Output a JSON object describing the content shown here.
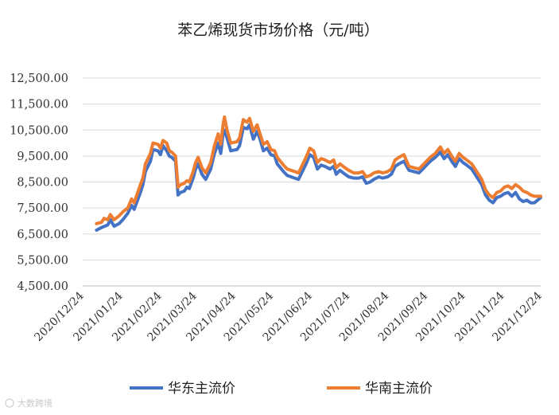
{
  "chart_data": {
    "type": "line",
    "title": "苯乙烯现货市场价格（元/吨）",
    "ylim": [
      4500,
      12500
    ],
    "yticks": [
      "4,500.00",
      "5,500.00",
      "6,500.00",
      "7,500.00",
      "8,500.00",
      "9,500.00",
      "10,500.00",
      "11,500.00",
      "12,500.00"
    ],
    "ytick_values": [
      4500,
      5500,
      6500,
      7500,
      8500,
      9500,
      10500,
      11500,
      12500
    ],
    "xlim": [
      "2020-12-24",
      "2021-12-24"
    ],
    "xticks": [
      "2020/12/24",
      "2021/01/24",
      "2021/02/24",
      "2021/03/24",
      "2021/04/24",
      "2021/05/24",
      "2021/06/24",
      "2021/07/24",
      "2021/08/24",
      "2021/09/24",
      "2021/10/24",
      "2021/11/24",
      "2021/12/24"
    ],
    "xtick_dates": [
      "2020-12-24",
      "2021-01-24",
      "2021-02-24",
      "2021-03-24",
      "2021-04-24",
      "2021-05-24",
      "2021-06-24",
      "2021-07-24",
      "2021-08-24",
      "2021-09-24",
      "2021-10-24",
      "2021-11-24",
      "2021-12-24"
    ],
    "grid": "horizontal",
    "legend_position": "bottom",
    "series": [
      {
        "name": "华东主流价",
        "color": "#4472c4",
        "points": [
          [
            "2021-01-04",
            6650
          ],
          [
            "2021-01-08",
            6750
          ],
          [
            "2021-01-13",
            6850
          ],
          [
            "2021-01-15",
            7050
          ],
          [
            "2021-01-18",
            6800
          ],
          [
            "2021-01-22",
            6900
          ],
          [
            "2021-01-25",
            7050
          ],
          [
            "2021-01-29",
            7300
          ],
          [
            "2021-02-01",
            7600
          ],
          [
            "2021-02-03",
            7450
          ],
          [
            "2021-02-08",
            8100
          ],
          [
            "2021-02-10",
            8400
          ],
          [
            "2021-02-12",
            8900
          ],
          [
            "2021-02-16",
            9300
          ],
          [
            "2021-02-18",
            9750
          ],
          [
            "2021-02-22",
            9700
          ],
          [
            "2021-02-24",
            9550
          ],
          [
            "2021-02-26",
            9900
          ],
          [
            "2021-03-01",
            9700
          ],
          [
            "2021-03-03",
            9500
          ],
          [
            "2021-03-05",
            9450
          ],
          [
            "2021-03-08",
            9300
          ],
          [
            "2021-03-10",
            8000
          ],
          [
            "2021-03-12",
            8100
          ],
          [
            "2021-03-15",
            8150
          ],
          [
            "2021-03-17",
            8300
          ],
          [
            "2021-03-19",
            8250
          ],
          [
            "2021-03-22",
            8650
          ],
          [
            "2021-03-24",
            9000
          ],
          [
            "2021-03-26",
            9200
          ],
          [
            "2021-03-29",
            8800
          ],
          [
            "2021-04-01",
            8600
          ],
          [
            "2021-04-05",
            9000
          ],
          [
            "2021-04-08",
            9600
          ],
          [
            "2021-04-11",
            10000
          ],
          [
            "2021-04-13",
            9600
          ],
          [
            "2021-04-15",
            10400
          ],
          [
            "2021-04-16",
            10500
          ],
          [
            "2021-04-18",
            10200
          ],
          [
            "2021-04-21",
            9700
          ],
          [
            "2021-04-26",
            9750
          ],
          [
            "2021-04-28",
            9900
          ],
          [
            "2021-05-01",
            10600
          ],
          [
            "2021-05-04",
            10550
          ],
          [
            "2021-05-06",
            10700
          ],
          [
            "2021-05-09",
            10150
          ],
          [
            "2021-05-12",
            10450
          ],
          [
            "2021-05-14",
            10200
          ],
          [
            "2021-05-17",
            9700
          ],
          [
            "2021-05-20",
            9800
          ],
          [
            "2021-05-23",
            9550
          ],
          [
            "2021-05-26",
            9500
          ],
          [
            "2021-05-28",
            9200
          ],
          [
            "2021-06-02",
            8900
          ],
          [
            "2021-06-05",
            8750
          ],
          [
            "2021-06-08",
            8700
          ],
          [
            "2021-06-11",
            8650
          ],
          [
            "2021-06-14",
            8600
          ],
          [
            "2021-06-17",
            8900
          ],
          [
            "2021-06-20",
            9200
          ],
          [
            "2021-06-23",
            9550
          ],
          [
            "2021-06-26",
            9450
          ],
          [
            "2021-06-29",
            9000
          ],
          [
            "2021-07-02",
            9150
          ],
          [
            "2021-07-05",
            9100
          ],
          [
            "2021-07-09",
            9000
          ],
          [
            "2021-07-12",
            9100
          ],
          [
            "2021-07-14",
            8800
          ],
          [
            "2021-07-17",
            8950
          ],
          [
            "2021-07-21",
            8800
          ],
          [
            "2021-07-24",
            8700
          ],
          [
            "2021-07-28",
            8650
          ],
          [
            "2021-08-01",
            8650
          ],
          [
            "2021-08-04",
            8700
          ],
          [
            "2021-08-07",
            8450
          ],
          [
            "2021-08-10",
            8500
          ],
          [
            "2021-08-13",
            8600
          ],
          [
            "2021-08-17",
            8700
          ],
          [
            "2021-08-20",
            8650
          ],
          [
            "2021-08-24",
            8700
          ],
          [
            "2021-08-27",
            8800
          ],
          [
            "2021-08-30",
            9100
          ],
          [
            "2021-09-02",
            9200
          ],
          [
            "2021-09-06",
            9300
          ],
          [
            "2021-09-10",
            8950
          ],
          [
            "2021-09-14",
            8900
          ],
          [
            "2021-09-18",
            8850
          ],
          [
            "2021-09-22",
            9050
          ],
          [
            "2021-09-27",
            9300
          ],
          [
            "2021-10-01",
            9450
          ],
          [
            "2021-10-05",
            9650
          ],
          [
            "2021-10-08",
            9400
          ],
          [
            "2021-10-11",
            9550
          ],
          [
            "2021-10-14",
            9300
          ],
          [
            "2021-10-17",
            9100
          ],
          [
            "2021-10-20",
            9400
          ],
          [
            "2021-10-23",
            9250
          ],
          [
            "2021-10-26",
            9150
          ],
          [
            "2021-10-30",
            9000
          ],
          [
            "2021-11-03",
            8700
          ],
          [
            "2021-11-07",
            8400
          ],
          [
            "2021-11-10",
            8000
          ],
          [
            "2021-11-13",
            7800
          ],
          [
            "2021-11-16",
            7700
          ],
          [
            "2021-11-19",
            7900
          ],
          [
            "2021-11-22",
            7950
          ],
          [
            "2021-11-25",
            8050
          ],
          [
            "2021-11-28",
            8100
          ],
          [
            "2021-12-01",
            7950
          ],
          [
            "2021-12-04",
            8100
          ],
          [
            "2021-12-07",
            7850
          ],
          [
            "2021-12-10",
            7750
          ],
          [
            "2021-12-13",
            7800
          ],
          [
            "2021-12-16",
            7700
          ],
          [
            "2021-12-19",
            7700
          ],
          [
            "2021-12-24",
            7900
          ]
        ]
      },
      {
        "name": "华南主流价",
        "color": "#ed7d31",
        "points": [
          [
            "2021-01-04",
            6900
          ],
          [
            "2021-01-08",
            6950
          ],
          [
            "2021-01-10",
            7100
          ],
          [
            "2021-01-13",
            7050
          ],
          [
            "2021-01-15",
            7250
          ],
          [
            "2021-01-18",
            7050
          ],
          [
            "2021-01-22",
            7200
          ],
          [
            "2021-01-25",
            7350
          ],
          [
            "2021-01-29",
            7500
          ],
          [
            "2021-02-01",
            7850
          ],
          [
            "2021-02-03",
            7700
          ],
          [
            "2021-02-08",
            8400
          ],
          [
            "2021-02-10",
            8650
          ],
          [
            "2021-02-12",
            9200
          ],
          [
            "2021-02-16",
            9600
          ],
          [
            "2021-02-18",
            10000
          ],
          [
            "2021-02-22",
            9950
          ],
          [
            "2021-02-24",
            9800
          ],
          [
            "2021-02-26",
            10100
          ],
          [
            "2021-03-01",
            10000
          ],
          [
            "2021-03-03",
            9700
          ],
          [
            "2021-03-05",
            9650
          ],
          [
            "2021-03-08",
            9500
          ],
          [
            "2021-03-10",
            8300
          ],
          [
            "2021-03-12",
            8400
          ],
          [
            "2021-03-15",
            8450
          ],
          [
            "2021-03-17",
            8550
          ],
          [
            "2021-03-19",
            8500
          ],
          [
            "2021-03-22",
            8900
          ],
          [
            "2021-03-24",
            9250
          ],
          [
            "2021-03-26",
            9450
          ],
          [
            "2021-03-29",
            9050
          ],
          [
            "2021-04-01",
            8850
          ],
          [
            "2021-04-05",
            9250
          ],
          [
            "2021-04-08",
            9900
          ],
          [
            "2021-04-11",
            10350
          ],
          [
            "2021-04-13",
            9950
          ],
          [
            "2021-04-15",
            10750
          ],
          [
            "2021-04-16",
            11000
          ],
          [
            "2021-04-18",
            10500
          ],
          [
            "2021-04-21",
            10000
          ],
          [
            "2021-04-26",
            10050
          ],
          [
            "2021-04-28",
            10200
          ],
          [
            "2021-05-01",
            10900
          ],
          [
            "2021-05-04",
            10800
          ],
          [
            "2021-05-06",
            10950
          ],
          [
            "2021-05-09",
            10450
          ],
          [
            "2021-05-12",
            10700
          ],
          [
            "2021-05-14",
            10400
          ],
          [
            "2021-05-17",
            9950
          ],
          [
            "2021-05-20",
            10050
          ],
          [
            "2021-05-23",
            9750
          ],
          [
            "2021-05-26",
            9700
          ],
          [
            "2021-05-28",
            9450
          ],
          [
            "2021-06-02",
            9150
          ],
          [
            "2021-06-05",
            9000
          ],
          [
            "2021-06-08",
            8950
          ],
          [
            "2021-06-11",
            8900
          ],
          [
            "2021-06-14",
            8850
          ],
          [
            "2021-06-17",
            9150
          ],
          [
            "2021-06-20",
            9450
          ],
          [
            "2021-06-23",
            9800
          ],
          [
            "2021-06-26",
            9700
          ],
          [
            "2021-06-29",
            9250
          ],
          [
            "2021-07-02",
            9400
          ],
          [
            "2021-07-05",
            9350
          ],
          [
            "2021-07-09",
            9250
          ],
          [
            "2021-07-12",
            9350
          ],
          [
            "2021-07-14",
            9050
          ],
          [
            "2021-07-17",
            9200
          ],
          [
            "2021-07-21",
            9050
          ],
          [
            "2021-07-24",
            8950
          ],
          [
            "2021-07-28",
            8850
          ],
          [
            "2021-08-01",
            8850
          ],
          [
            "2021-08-04",
            8900
          ],
          [
            "2021-08-07",
            8700
          ],
          [
            "2021-08-10",
            8750
          ],
          [
            "2021-08-13",
            8850
          ],
          [
            "2021-08-17",
            8900
          ],
          [
            "2021-08-20",
            8850
          ],
          [
            "2021-08-24",
            8900
          ],
          [
            "2021-08-27",
            9000
          ],
          [
            "2021-08-30",
            9350
          ],
          [
            "2021-09-02",
            9450
          ],
          [
            "2021-09-06",
            9550
          ],
          [
            "2021-09-10",
            9100
          ],
          [
            "2021-09-14",
            9050
          ],
          [
            "2021-09-18",
            9000
          ],
          [
            "2021-09-22",
            9200
          ],
          [
            "2021-09-27",
            9450
          ],
          [
            "2021-10-01",
            9600
          ],
          [
            "2021-10-05",
            9850
          ],
          [
            "2021-10-08",
            9600
          ],
          [
            "2021-10-11",
            9750
          ],
          [
            "2021-10-14",
            9500
          ],
          [
            "2021-10-17",
            9300
          ],
          [
            "2021-10-20",
            9600
          ],
          [
            "2021-10-23",
            9450
          ],
          [
            "2021-10-26",
            9350
          ],
          [
            "2021-10-30",
            9200
          ],
          [
            "2021-11-03",
            8900
          ],
          [
            "2021-11-07",
            8600
          ],
          [
            "2021-11-10",
            8200
          ],
          [
            "2021-11-13",
            8000
          ],
          [
            "2021-11-16",
            7900
          ],
          [
            "2021-11-19",
            8100
          ],
          [
            "2021-11-22",
            8150
          ],
          [
            "2021-11-25",
            8300
          ],
          [
            "2021-11-28",
            8350
          ],
          [
            "2021-12-01",
            8250
          ],
          [
            "2021-12-04",
            8400
          ],
          [
            "2021-12-07",
            8300
          ],
          [
            "2021-12-10",
            8150
          ],
          [
            "2021-12-13",
            8100
          ],
          [
            "2021-12-16",
            8000
          ],
          [
            "2021-12-19",
            7950
          ],
          [
            "2021-12-24",
            7950
          ]
        ]
      }
    ]
  },
  "watermark": "大数跨境"
}
